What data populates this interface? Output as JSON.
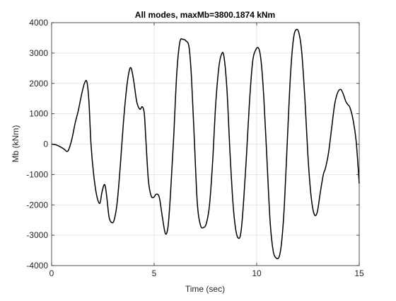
{
  "chart_data": {
    "type": "line",
    "title": "All modes, maxMb=3800.1874 kNm",
    "xlabel": "Time (sec)",
    "ylabel": "Mb (kNm)",
    "xlim": [
      0,
      15
    ],
    "ylim": [
      -4000,
      4000
    ],
    "xticks": [
      0,
      5,
      10,
      15
    ],
    "yticks": [
      -4000,
      -3000,
      -2000,
      -1000,
      0,
      1000,
      2000,
      3000,
      4000
    ],
    "xtick_labels": [
      "0",
      "5",
      "10",
      "15"
    ],
    "ytick_labels": [
      "-4000",
      "-3000",
      "-2000",
      "-1000",
      "0",
      "1000",
      "2000",
      "3000",
      "4000"
    ],
    "grid": true,
    "line_color": "#000000",
    "series": [
      {
        "x": [
          0,
          0.2,
          0.4,
          0.6,
          0.75,
          0.85,
          1.0,
          1.15,
          1.3,
          1.45,
          1.6,
          1.72,
          1.82,
          1.92,
          2.05,
          2.2,
          2.35,
          2.45,
          2.55,
          2.62,
          2.7,
          2.8,
          2.92,
          3.05,
          3.2,
          3.35,
          3.5,
          3.65,
          3.78,
          3.88,
          4.0,
          4.15,
          4.3,
          4.42,
          4.52,
          4.6,
          4.72,
          4.85,
          4.98,
          5.1,
          5.25,
          5.4,
          5.55,
          5.68,
          5.8,
          5.95,
          6.1,
          6.25,
          6.4,
          6.55,
          6.7,
          6.82,
          6.95,
          7.1,
          7.25,
          7.4,
          7.55,
          7.7,
          7.85,
          8.0,
          8.15,
          8.28,
          8.4,
          8.55,
          8.7,
          8.85,
          9.0,
          9.15,
          9.25,
          9.35,
          9.5,
          9.65,
          9.8,
          9.95,
          10.1,
          10.22,
          10.35,
          10.5,
          10.65,
          10.8,
          10.95,
          11.1,
          11.22,
          11.35,
          11.5,
          11.65,
          11.8,
          11.95,
          12.08,
          12.2,
          12.35,
          12.5,
          12.65,
          12.8,
          12.95,
          13.1,
          13.25,
          13.35,
          13.5,
          13.65,
          13.8,
          13.95,
          14.1,
          14.22,
          14.35,
          14.45,
          14.55,
          14.7,
          14.85,
          15.0
        ],
        "y": [
          0,
          -20,
          -80,
          -160,
          -240,
          -150,
          200,
          700,
          1100,
          1600,
          2000,
          2050,
          1400,
          0,
          -1000,
          -1700,
          -1950,
          -1600,
          -1350,
          -1400,
          -1800,
          -2400,
          -2580,
          -2500,
          -1900,
          -700,
          700,
          1800,
          2400,
          2500,
          2100,
          1400,
          1150,
          1230,
          1000,
          100,
          -1200,
          -1700,
          -1750,
          -1650,
          -1750,
          -2400,
          -2950,
          -2700,
          -1600,
          200,
          2300,
          3350,
          3450,
          3400,
          3200,
          2200,
          300,
          -1900,
          -2650,
          -2750,
          -2600,
          -2000,
          -600,
          1300,
          2500,
          2950,
          2900,
          1800,
          -300,
          -2000,
          -2900,
          -3100,
          -2800,
          -2000,
          -400,
          1400,
          2700,
          3100,
          3150,
          2700,
          1500,
          -500,
          -2500,
          -3500,
          -3750,
          -3700,
          -3200,
          -2000,
          200,
          2300,
          3500,
          3780,
          3600,
          3000,
          1500,
          -400,
          -1700,
          -2300,
          -2250,
          -1600,
          -1000,
          -800,
          -300,
          500,
          1300,
          1700,
          1800,
          1650,
          1400,
          1300,
          1200,
          800,
          100,
          -1300
        ]
      }
    ]
  }
}
